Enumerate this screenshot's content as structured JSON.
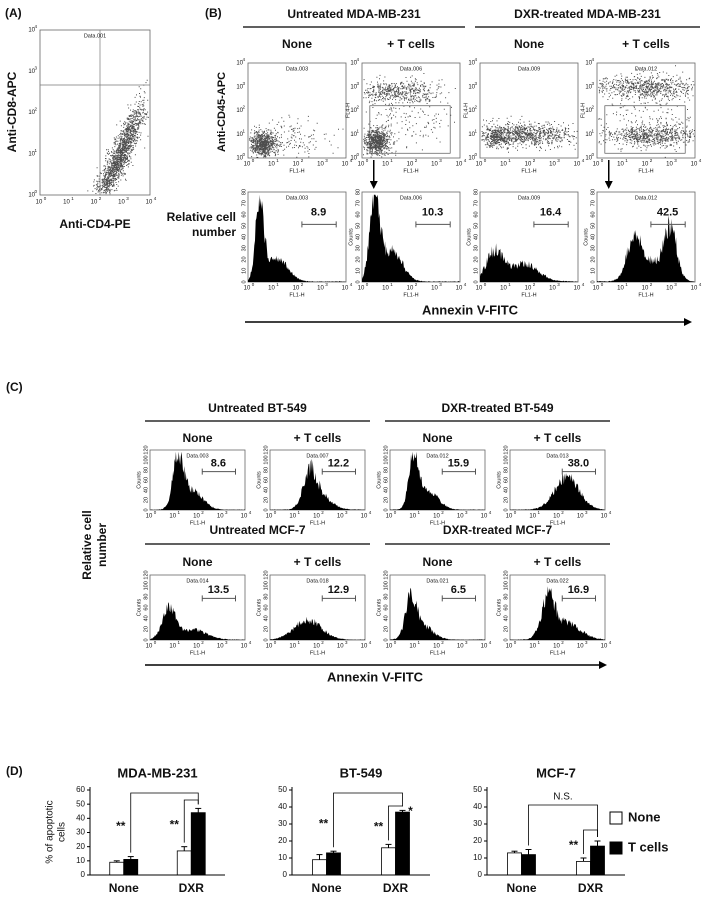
{
  "panel_a": {
    "label": "(A)",
    "plot_title": "Data.001",
    "y_label": "Anti-CD8-APC",
    "x_label": "Anti-CD4-PE"
  },
  "log_ticks": [
    {
      "base": "10",
      "exp": "0"
    },
    {
      "base": "10",
      "exp": "1"
    },
    {
      "base": "10",
      "exp": "2"
    },
    {
      "base": "10",
      "exp": "3"
    },
    {
      "base": "10",
      "exp": "4"
    }
  ],
  "panel_b": {
    "label": "(B)",
    "groups": [
      {
        "title": "Untreated MDA-MB-231",
        "columns": [
          "None",
          "+ T cells"
        ]
      },
      {
        "title": "DXR-treated MDA-MB-231",
        "columns": [
          "None",
          "+ T cells"
        ]
      }
    ],
    "dot_y_label": "Anti-CD45-APC",
    "dot_plots": [
      {
        "title": "Data.003",
        "x_label": "FL1-H"
      },
      {
        "title": "Data.006",
        "x_label": "FL1-H",
        "y_label": "FL4-H"
      },
      {
        "title": "Data.009",
        "x_label": "FL1-H",
        "y_label": "FL4-H"
      },
      {
        "title": "Data.012",
        "x_label": "FL1-H",
        "y_label": "FL4-H"
      }
    ],
    "count_ticks": [
      "0",
      "10",
      "20",
      "30",
      "40",
      "50",
      "60",
      "70",
      "80"
    ],
    "histograms": [
      {
        "title": "Data.003",
        "gate": "8.9",
        "x_label": "FL1-H"
      },
      {
        "title": "Data.006",
        "gate": "10.3",
        "x_label": "FL1-H",
        "y_label": "Counts"
      },
      {
        "title": "Data.009",
        "gate": "16.4",
        "x_label": "FL1-H",
        "y_label": "Counts"
      },
      {
        "title": "Data.012",
        "gate": "42.5",
        "x_label": "FL1-H",
        "y_label": "Counts"
      }
    ],
    "y_label": [
      "Relative cell",
      "number"
    ],
    "x_label": "Annexin V-FITC"
  },
  "panel_c": {
    "label": "(C)",
    "count_ticks": [
      "0",
      "20",
      "40",
      "60",
      "80",
      "100",
      "120"
    ],
    "rows": [
      {
        "groups": [
          {
            "title": "Untreated BT-549",
            "columns": [
              "None",
              "+ T cells"
            ]
          },
          {
            "title": "DXR-treated BT-549",
            "columns": [
              "None",
              "+ T cells"
            ]
          }
        ],
        "histograms": [
          {
            "title": "Data.003",
            "gate": "8.6",
            "x_label": "FL1-H",
            "y_label": "Counts"
          },
          {
            "title": "Data.007",
            "gate": "12.2",
            "x_label": "FL1-H",
            "y_label": "Counts"
          },
          {
            "title": "Data.012",
            "gate": "15.9",
            "x_label": "FL1-H",
            "y_label": "Counts"
          },
          {
            "title": "Data.013",
            "gate": "38.0",
            "x_label": "FL1-H",
            "y_label": "Counts"
          }
        ]
      },
      {
        "groups": [
          {
            "title": "Untreated MCF-7",
            "columns": [
              "None",
              "+ T cells"
            ]
          },
          {
            "title": "DXR-treated MCF-7",
            "columns": [
              "None",
              "+ T cells"
            ]
          }
        ],
        "histograms": [
          {
            "title": "Data.014",
            "gate": "13.5",
            "x_label": "FL1-H",
            "y_label": "Counts"
          },
          {
            "title": "Data.018",
            "gate": "12.9",
            "x_label": "FL1-H",
            "y_label": "Counts"
          },
          {
            "title": "Data.021",
            "gate": "6.5",
            "x_label": "FL1-H",
            "y_label": "Counts"
          },
          {
            "title": "Data.022",
            "gate": "16.9",
            "x_label": "FL1-H",
            "y_label": "Counts"
          }
        ]
      }
    ],
    "y_label": [
      "Relative cell",
      "number"
    ],
    "x_label": "Annexin V-FITC"
  },
  "panel_d": {
    "label": "(D)"
  },
  "chart_data": [
    {
      "type": "bar",
      "title": "MDA-MB-231",
      "ylabel": [
        "% of apoptotic",
        "cells"
      ],
      "categories": [
        "None",
        "DXR"
      ],
      "series": [
        {
          "name": "None",
          "color": "#ffffff",
          "values": [
            9,
            17
          ],
          "errors": [
            1,
            3
          ]
        },
        {
          "name": "T cells",
          "color": "#000000",
          "values": [
            11,
            44
          ],
          "errors": [
            2,
            3
          ]
        }
      ],
      "ylim": [
        0,
        60
      ],
      "yticks": [
        0,
        10,
        20,
        30,
        40,
        50,
        60
      ],
      "annotations": [
        "**",
        "**"
      ]
    },
    {
      "type": "bar",
      "title": "BT-549",
      "categories": [
        "None",
        "DXR"
      ],
      "series": [
        {
          "name": "None",
          "color": "#ffffff",
          "values": [
            9,
            16
          ],
          "errors": [
            3,
            2
          ]
        },
        {
          "name": "T cells",
          "color": "#000000",
          "values": [
            13,
            37
          ],
          "errors": [
            1,
            1
          ]
        }
      ],
      "ylim": [
        0,
        50
      ],
      "yticks": [
        0,
        10,
        20,
        30,
        40,
        50
      ],
      "annotations": [
        "**",
        "**",
        "*"
      ]
    },
    {
      "type": "bar",
      "title": "MCF-7",
      "categories": [
        "None",
        "DXR"
      ],
      "series": [
        {
          "name": "None",
          "color": "#ffffff",
          "values": [
            13,
            8
          ],
          "errors": [
            1,
            2
          ]
        },
        {
          "name": "T cells",
          "color": "#000000",
          "values": [
            12,
            17
          ],
          "errors": [
            3,
            3
          ]
        }
      ],
      "ylim": [
        0,
        50
      ],
      "yticks": [
        0,
        10,
        20,
        30,
        40,
        50
      ],
      "annotations": [
        "N.S.",
        "**"
      ]
    }
  ]
}
